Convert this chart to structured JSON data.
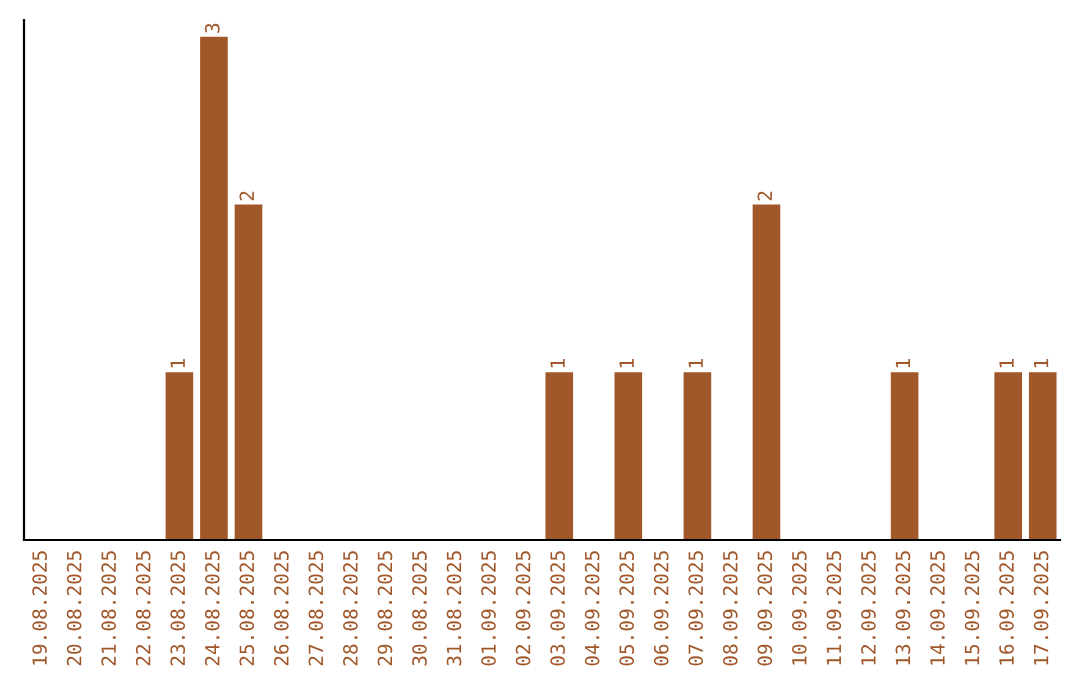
{
  "chart_data": {
    "type": "bar",
    "categories": [
      "19.08.2025",
      "20.08.2025",
      "21.08.2025",
      "22.08.2025",
      "23.08.2025",
      "24.08.2025",
      "25.08.2025",
      "26.08.2025",
      "27.08.2025",
      "28.08.2025",
      "29.08.2025",
      "30.08.2025",
      "31.08.2025",
      "01.09.2025",
      "02.09.2025",
      "03.09.2025",
      "04.09.2025",
      "05.09.2025",
      "06.09.2025",
      "07.09.2025",
      "08.09.2025",
      "09.09.2025",
      "10.09.2025",
      "11.09.2025",
      "12.09.2025",
      "13.09.2025",
      "14.09.2025",
      "15.09.2025",
      "16.09.2025",
      "17.09.2025"
    ],
    "values": [
      0,
      0,
      0,
      0,
      1,
      3,
      2,
      0,
      0,
      0,
      0,
      0,
      0,
      0,
      0,
      1,
      0,
      1,
      0,
      1,
      0,
      2,
      0,
      0,
      0,
      1,
      0,
      0,
      1,
      1
    ],
    "value_labels": [
      null,
      null,
      null,
      null,
      "1",
      "3",
      "2",
      null,
      null,
      null,
      null,
      null,
      null,
      null,
      null,
      "1",
      null,
      "1",
      null,
      "1",
      null,
      "2",
      null,
      null,
      null,
      "1",
      null,
      null,
      "1",
      "1"
    ],
    "color": "#a0572a",
    "ylim": [
      0,
      3.1
    ],
    "tick_labels": "x",
    "grid": false,
    "legend": false
  }
}
